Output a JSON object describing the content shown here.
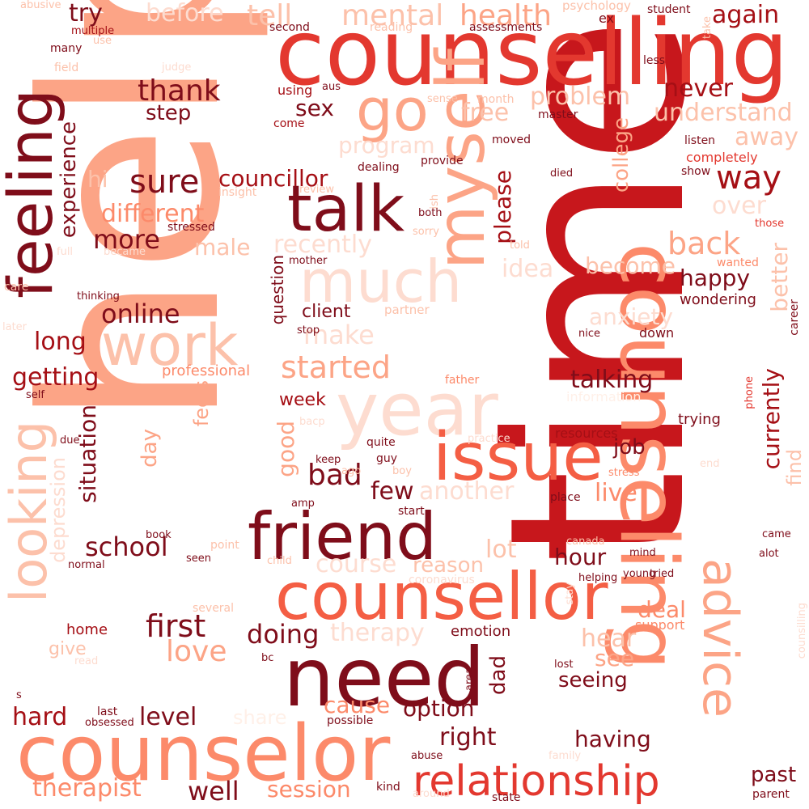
{
  "colors": {
    "background": "#ffffff",
    "c1": "#7f0d1a",
    "c2": "#a50f15",
    "c3": "#c7171c",
    "c4": "#e3382f",
    "c5": "#f45e44",
    "c6": "#fc8a6a",
    "c7": "#fca486",
    "c8": "#fcc1aa",
    "c9": "#fddcd0",
    "c10": "#fff0e8"
  },
  "words": [
    {
      "text": "help",
      "color": "c7"
    },
    {
      "text": "time",
      "color": "c3"
    },
    {
      "text": "counselling",
      "color": "c4"
    },
    {
      "text": "counseling",
      "color": "c6"
    },
    {
      "text": "counselor",
      "color": "c6"
    },
    {
      "text": "counsellor",
      "color": "c5"
    },
    {
      "text": "need",
      "color": "c1"
    },
    {
      "text": "feeling",
      "color": "c1"
    },
    {
      "text": "myself",
      "color": "c7"
    },
    {
      "text": "year",
      "color": "c9"
    },
    {
      "text": "issue",
      "color": "c5"
    },
    {
      "text": "friend",
      "color": "c1"
    },
    {
      "text": "talk",
      "color": "c1"
    },
    {
      "text": "work",
      "color": "c8"
    },
    {
      "text": "much",
      "color": "c9"
    },
    {
      "text": "looking",
      "color": "c8"
    },
    {
      "text": "advice",
      "color": "c7"
    },
    {
      "text": "relationship",
      "color": "c4"
    },
    {
      "text": "go",
      "color": "c7"
    },
    {
      "text": "mental",
      "color": "c8"
    },
    {
      "text": "health",
      "color": "c7"
    },
    {
      "text": "tell",
      "color": "c8"
    },
    {
      "text": "before",
      "color": "c9"
    },
    {
      "text": "try",
      "color": "c1"
    },
    {
      "text": "again",
      "color": "c2"
    },
    {
      "text": "thank",
      "color": "c1"
    },
    {
      "text": "step",
      "color": "c1"
    },
    {
      "text": "sure",
      "color": "c1"
    },
    {
      "text": "councillor",
      "color": "c2"
    },
    {
      "text": "way",
      "color": "c2"
    },
    {
      "text": "different",
      "color": "c6"
    },
    {
      "text": "more",
      "color": "c1"
    },
    {
      "text": "male",
      "color": "c8"
    },
    {
      "text": "experience",
      "color": "c1"
    },
    {
      "text": "hi",
      "color": "c8"
    },
    {
      "text": "problem",
      "color": "c8"
    },
    {
      "text": "understand",
      "color": "c8"
    },
    {
      "text": "never",
      "color": "c2"
    },
    {
      "text": "free",
      "color": "c8"
    },
    {
      "text": "away",
      "color": "c8"
    },
    {
      "text": "over",
      "color": "c9"
    },
    {
      "text": "back",
      "color": "c7"
    },
    {
      "text": "become",
      "color": "c8"
    },
    {
      "text": "happy",
      "color": "c1"
    },
    {
      "text": "better",
      "color": "c8"
    },
    {
      "text": "sex",
      "color": "c1"
    },
    {
      "text": "program",
      "color": "c9"
    },
    {
      "text": "recently",
      "color": "c9"
    },
    {
      "text": "idea",
      "color": "c9"
    },
    {
      "text": "please",
      "color": "c2"
    },
    {
      "text": "college",
      "color": "c7"
    },
    {
      "text": "online",
      "color": "c1"
    },
    {
      "text": "long",
      "color": "c2"
    },
    {
      "text": "getting",
      "color": "c2"
    },
    {
      "text": "make",
      "color": "c9"
    },
    {
      "text": "client",
      "color": "c1"
    },
    {
      "text": "question",
      "color": "c1"
    },
    {
      "text": "started",
      "color": "c7"
    },
    {
      "text": "anxiety",
      "color": "c9"
    },
    {
      "text": "talking",
      "color": "c1"
    },
    {
      "text": "currently",
      "color": "c2"
    },
    {
      "text": "professional",
      "color": "c6"
    },
    {
      "text": "week",
      "color": "c2"
    },
    {
      "text": "good",
      "color": "c7"
    },
    {
      "text": "feels",
      "color": "c7"
    },
    {
      "text": "situation",
      "color": "c1"
    },
    {
      "text": "day",
      "color": "c7"
    },
    {
      "text": "bad",
      "color": "c1"
    },
    {
      "text": "few",
      "color": "c1"
    },
    {
      "text": "another",
      "color": "c9"
    },
    {
      "text": "job",
      "color": "c1"
    },
    {
      "text": "live",
      "color": "c6"
    },
    {
      "text": "find",
      "color": "c8"
    },
    {
      "text": "school",
      "color": "c1"
    },
    {
      "text": "course",
      "color": "c9"
    },
    {
      "text": "reason",
      "color": "c8"
    },
    {
      "text": "lot",
      "color": "c8"
    },
    {
      "text": "hour",
      "color": "c1"
    },
    {
      "text": "first",
      "color": "c1"
    },
    {
      "text": "doing",
      "color": "c1"
    },
    {
      "text": "love",
      "color": "c7"
    },
    {
      "text": "therapy",
      "color": "c9"
    },
    {
      "text": "hear",
      "color": "c8"
    },
    {
      "text": "see",
      "color": "c7"
    },
    {
      "text": "deal",
      "color": "c6"
    },
    {
      "text": "seeing",
      "color": "c1"
    },
    {
      "text": "dad",
      "color": "c1"
    },
    {
      "text": "give",
      "color": "c8"
    },
    {
      "text": "home",
      "color": "c2"
    },
    {
      "text": "hard",
      "color": "c2"
    },
    {
      "text": "level",
      "color": "c1"
    },
    {
      "text": "cause",
      "color": "c6"
    },
    {
      "text": "option",
      "color": "c1"
    },
    {
      "text": "right",
      "color": "c1"
    },
    {
      "text": "having",
      "color": "c1"
    },
    {
      "text": "therapist",
      "color": "c6"
    },
    {
      "text": "well",
      "color": "c1"
    },
    {
      "text": "session",
      "color": "c6"
    },
    {
      "text": "past",
      "color": "c1"
    },
    {
      "text": "share",
      "color": "c10"
    },
    {
      "text": "depression",
      "color": "c9"
    },
    {
      "text": "emotion",
      "color": "c1"
    },
    {
      "text": "support",
      "color": "c6"
    },
    {
      "text": "trying",
      "color": "c1"
    },
    {
      "text": "information",
      "color": "c10"
    },
    {
      "text": "resources",
      "color": "c2"
    },
    {
      "text": "wondering",
      "color": "c1"
    },
    {
      "text": "career",
      "color": "c1"
    },
    {
      "text": "completely",
      "color": "c4"
    },
    {
      "text": "listen",
      "color": "c1"
    },
    {
      "text": "show",
      "color": "c1"
    },
    {
      "text": "those",
      "color": "c4"
    },
    {
      "text": "wanted",
      "color": "c6"
    },
    {
      "text": "psychology",
      "color": "c8"
    },
    {
      "text": "student",
      "color": "c1"
    },
    {
      "text": "assessments",
      "color": "c1"
    },
    {
      "text": "second",
      "color": "c1"
    },
    {
      "text": "reading",
      "color": "c8"
    },
    {
      "text": "abusive",
      "color": "c8"
    },
    {
      "text": "multiple",
      "color": "c2"
    },
    {
      "text": "use",
      "color": "c8"
    },
    {
      "text": "many",
      "color": "c1"
    },
    {
      "text": "field",
      "color": "c8"
    },
    {
      "text": "judge",
      "color": "c9"
    },
    {
      "text": "less",
      "color": "c1"
    },
    {
      "text": "take",
      "color": "c8"
    },
    {
      "text": "ex",
      "color": "c1"
    },
    {
      "text": "month",
      "color": "c8"
    },
    {
      "text": "master",
      "color": "c1"
    },
    {
      "text": "sense",
      "color": "c8"
    },
    {
      "text": "aus",
      "color": "c1"
    },
    {
      "text": "using",
      "color": "c2"
    },
    {
      "text": "come",
      "color": "c2"
    },
    {
      "text": "moved",
      "color": "c1"
    },
    {
      "text": "provide",
      "color": "c1"
    },
    {
      "text": "dealing",
      "color": "c1"
    },
    {
      "text": "insight",
      "color": "c8"
    },
    {
      "text": "review",
      "color": "c8"
    },
    {
      "text": "died",
      "color": "c1"
    },
    {
      "text": "ish",
      "color": "c8"
    },
    {
      "text": "both",
      "color": "c1"
    },
    {
      "text": "sorry",
      "color": "c8"
    },
    {
      "text": "told",
      "color": "c8"
    },
    {
      "text": "stressed",
      "color": "c1"
    },
    {
      "text": "full",
      "color": "c9"
    },
    {
      "text": "became",
      "color": "c9"
    },
    {
      "text": "mother",
      "color": "c1"
    },
    {
      "text": "care",
      "color": "c8"
    },
    {
      "text": "thinking",
      "color": "c1"
    },
    {
      "text": "partner",
      "color": "c8"
    },
    {
      "text": "later",
      "color": "c9"
    },
    {
      "text": "stop",
      "color": "c1"
    },
    {
      "text": "nice",
      "color": "c1"
    },
    {
      "text": "down",
      "color": "c1"
    },
    {
      "text": "phone",
      "color": "c4"
    },
    {
      "text": "self",
      "color": "c1"
    },
    {
      "text": "father",
      "color": "c6"
    },
    {
      "text": "bacp",
      "color": "c9"
    },
    {
      "text": "due",
      "color": "c1"
    },
    {
      "text": "practice",
      "color": "c9"
    },
    {
      "text": "quite",
      "color": "c1"
    },
    {
      "text": "keep",
      "color": "c1"
    },
    {
      "text": "guy",
      "color": "c1"
    },
    {
      "text": "boy",
      "color": "c8"
    },
    {
      "text": "ago",
      "color": "c8"
    },
    {
      "text": "stress",
      "color": "c6"
    },
    {
      "text": "end",
      "color": "c9"
    },
    {
      "text": "place",
      "color": "c1"
    },
    {
      "text": "start",
      "color": "c1"
    },
    {
      "text": "amp",
      "color": "c1"
    },
    {
      "text": "came",
      "color": "c1"
    },
    {
      "text": "alot",
      "color": "c1"
    },
    {
      "text": "book",
      "color": "c1"
    },
    {
      "text": "point",
      "color": "c8"
    },
    {
      "text": "child",
      "color": "c8"
    },
    {
      "text": "seen",
      "color": "c1"
    },
    {
      "text": "normal",
      "color": "c1"
    },
    {
      "text": "canada",
      "color": "c8"
    },
    {
      "text": "mind",
      "color": "c1"
    },
    {
      "text": "young",
      "color": "c1"
    },
    {
      "text": "helping",
      "color": "c1"
    },
    {
      "text": "coronavirus",
      "color": "c9"
    },
    {
      "text": "stay",
      "color": "c9"
    },
    {
      "text": "tried",
      "color": "c1"
    },
    {
      "text": "several",
      "color": "c8"
    },
    {
      "text": "counsilling",
      "color": "c9"
    },
    {
      "text": "read",
      "color": "c9"
    },
    {
      "text": "bc",
      "color": "c1"
    },
    {
      "text": "lost",
      "color": "c1"
    },
    {
      "text": "area",
      "color": "c1"
    },
    {
      "text": "s",
      "color": "c1"
    },
    {
      "text": "last",
      "color": "c1"
    },
    {
      "text": "obsessed",
      "color": "c1"
    },
    {
      "text": "possible",
      "color": "c1"
    },
    {
      "text": "abuse",
      "color": "c1"
    },
    {
      "text": "family",
      "color": "c9"
    },
    {
      "text": "kind",
      "color": "c1"
    },
    {
      "text": "around",
      "color": "c9"
    },
    {
      "text": "state",
      "color": "c1"
    },
    {
      "text": "parent",
      "color": "c1"
    }
  ]
}
